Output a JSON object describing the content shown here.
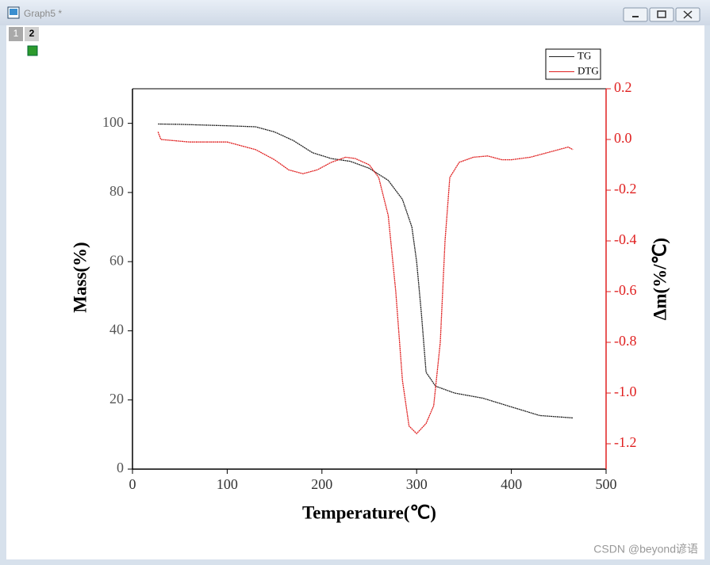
{
  "window": {
    "title": "Graph5 *",
    "tabs": [
      "1",
      "2"
    ]
  },
  "watermark": "CSDN @beyond谚语",
  "chart_data": {
    "type": "line",
    "xlabel": "Temperature(℃)",
    "ylabel": "Mass(%)",
    "y2label": "Δm(%/℃)",
    "xlim": [
      0,
      500
    ],
    "xticks": [
      0,
      100,
      200,
      300,
      400,
      500
    ],
    "ylim": [
      0,
      110
    ],
    "yticks": [
      0,
      20,
      40,
      60,
      80,
      100
    ],
    "y2lim": [
      -1.3,
      0.2
    ],
    "y2ticks": [
      0.2,
      {
        "value": 0,
        "label": "0.0"
      },
      -0.2,
      -0.4,
      -0.6,
      -0.8,
      {
        "value": -1,
        "label": "-1.0"
      },
      -1.2
    ],
    "legend": "top-right",
    "series": [
      {
        "name": "TG",
        "color": "#222222",
        "x": [
          27,
          50,
          100,
          130,
          150,
          170,
          190,
          210,
          230,
          250,
          270,
          285,
          295,
          300,
          305,
          310,
          320,
          340,
          370,
          400,
          430,
          465
        ],
        "values": [
          99.8,
          99.7,
          99.3,
          99,
          97.5,
          95,
          91.5,
          89.8,
          89,
          87,
          83.5,
          78,
          70,
          60,
          45,
          28,
          24,
          22,
          20.5,
          18,
          15.5,
          14.8
        ]
      },
      {
        "name": "DTG",
        "color": "#e02020",
        "axis": "y2",
        "x": [
          27,
          30,
          60,
          100,
          130,
          150,
          165,
          180,
          195,
          210,
          225,
          235,
          250,
          260,
          270,
          278,
          285,
          292,
          300,
          310,
          318,
          325,
          330,
          335,
          345,
          360,
          375,
          390,
          400,
          420,
          440,
          460,
          465
        ],
        "values": [
          0.03,
          0.0,
          -0.01,
          -0.01,
          -0.04,
          -0.08,
          -0.12,
          -0.135,
          -0.12,
          -0.09,
          -0.07,
          -0.075,
          -0.1,
          -0.15,
          -0.3,
          -0.6,
          -0.95,
          -1.13,
          -1.16,
          -1.12,
          -1.05,
          -0.8,
          -0.4,
          -0.15,
          -0.09,
          -0.07,
          -0.065,
          -0.08,
          -0.08,
          -0.07,
          -0.05,
          -0.03,
          -0.04
        ]
      }
    ]
  }
}
